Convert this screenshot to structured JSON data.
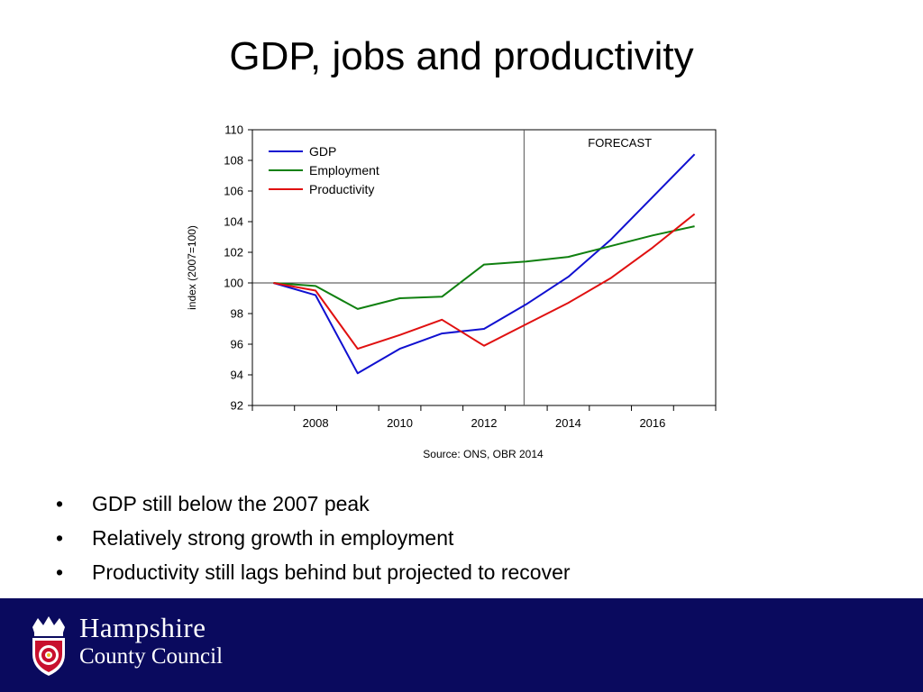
{
  "slide": {
    "title": "GDP, jobs and productivity",
    "bullets": [
      "GDP still below the 2007 peak",
      "Relatively strong growth in employment",
      "Productivity still lags behind but projected to recover"
    ]
  },
  "footer": {
    "org_line1": "Hampshire",
    "org_line2": "County Council",
    "background_color": "#0a0a5e"
  },
  "chart_data": {
    "type": "line",
    "ylabel": "index (2007=100)",
    "xlabel": "",
    "ylim": [
      92,
      110
    ],
    "yticks": [
      92,
      94,
      96,
      98,
      100,
      102,
      104,
      106,
      108,
      110
    ],
    "xlim": [
      2006.5,
      2017.5
    ],
    "xticks": [
      2008,
      2010,
      2012,
      2014,
      2016
    ],
    "x": [
      2007,
      2008,
      2009,
      2010,
      2011,
      2012,
      2013,
      2014,
      2015,
      2016,
      2017
    ],
    "reference_line_y": 100,
    "forecast_start_x": 2013,
    "annotation": "FORECAST",
    "source": "Source: ONS, OBR 2014",
    "legend_position": "top-left",
    "grid": false,
    "series": [
      {
        "name": "GDP",
        "color": "#1010d0",
        "values": [
          100,
          99.2,
          94.1,
          95.7,
          96.7,
          97.0,
          98.6,
          100.4,
          102.8,
          105.6,
          108.4
        ]
      },
      {
        "name": "Employment",
        "color": "#108010",
        "values": [
          100,
          99.8,
          98.3,
          99.0,
          99.1,
          101.2,
          101.4,
          101.7,
          102.4,
          103.1,
          103.7
        ]
      },
      {
        "name": "Productivity",
        "color": "#e01010",
        "values": [
          100,
          99.5,
          95.7,
          96.6,
          97.6,
          95.9,
          97.3,
          98.7,
          100.3,
          102.3,
          104.5
        ]
      }
    ]
  }
}
